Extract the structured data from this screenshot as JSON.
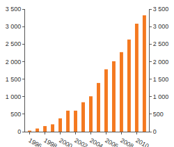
{
  "chart_data": {
    "type": "bar",
    "categories": [
      "1996",
      null,
      "1998",
      null,
      "2000",
      null,
      "2002",
      null,
      "2004",
      null,
      "2006",
      null,
      "2008",
      null,
      "2010",
      null
    ],
    "values": [
      30,
      90,
      160,
      210,
      380,
      600,
      600,
      840,
      1010,
      1390,
      1780,
      2010,
      2270,
      2630,
      3080,
      3320
    ],
    "color": "#f47920",
    "ylim": [
      0,
      3500
    ],
    "yticks": [
      0,
      {
        "value": 500,
        "label": "500"
      },
      {
        "value": 1000,
        "label": "1 000"
      },
      {
        "value": 1500,
        "label": "1 500"
      },
      {
        "value": 2000,
        "label": "2 000"
      },
      {
        "value": 2500,
        "label": "2 500"
      },
      {
        "value": 3000,
        "label": "3 000"
      },
      {
        "value": 3500,
        "label": "3 500"
      }
    ],
    "y2lim": [
      0,
      3500
    ],
    "y2ticks": [
      0,
      {
        "value": 500,
        "label": "500"
      },
      {
        "value": 1000,
        "label": "1 000"
      },
      {
        "value": 1500,
        "label": "1 500"
      },
      {
        "value": 2000,
        "label": "2 000"
      },
      {
        "value": 2500,
        "label": "2 500"
      },
      {
        "value": 3000,
        "label": "3 000"
      },
      {
        "value": 3500,
        "label": "3 500"
      }
    ],
    "grid": false
  }
}
